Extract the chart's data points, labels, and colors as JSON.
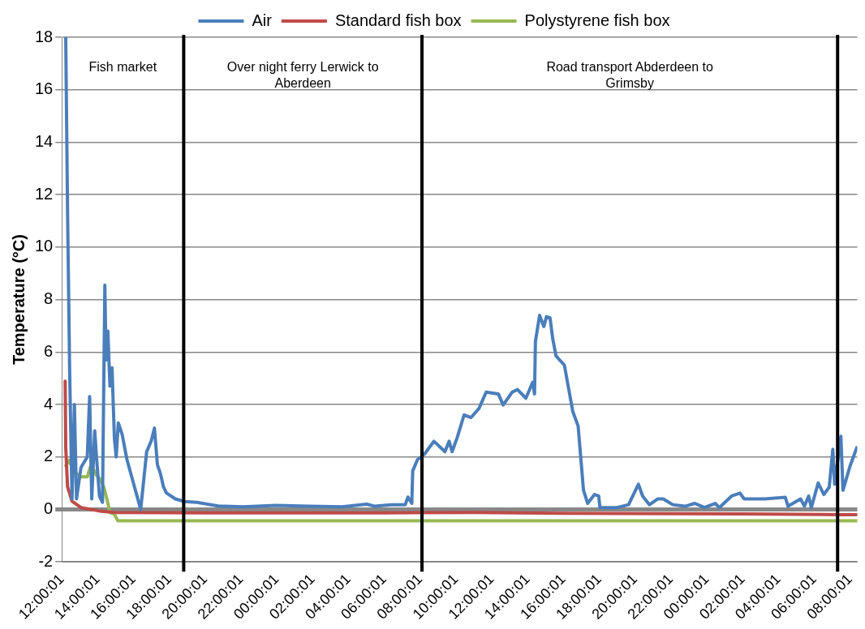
{
  "chart_data": {
    "type": "line",
    "ylabel": "Temperature (°C)",
    "xlim": [
      "--01-01T12:00",
      "--01-03T08:24"
    ],
    "ylim": [
      -2,
      18
    ],
    "yticks": [
      -2,
      0,
      2,
      4,
      6,
      8,
      10,
      12,
      14,
      16,
      18
    ],
    "xticks": [
      {
        "value": "--01-01T12:00:01",
        "label": "12:00:01"
      },
      {
        "value": "--01-01T14:00:01",
        "label": "14:00:01"
      },
      {
        "value": "--01-01T16:00:01",
        "label": "16:00:01"
      },
      {
        "value": "--01-01T18:00:01",
        "label": "18:00:01"
      },
      {
        "value": "--01-01T20:00:01",
        "label": "20:00:01"
      },
      {
        "value": "--01-01T22:00:01",
        "label": "22:00:01"
      },
      {
        "value": "--01-02T00:00:01",
        "label": "00:00:01"
      },
      {
        "value": "--01-02T02:00:01",
        "label": "02:00:01"
      },
      {
        "value": "--01-02T04:00:01",
        "label": "04:00:01"
      },
      {
        "value": "--01-02T06:00:01",
        "label": "06:00:01"
      },
      {
        "value": "--01-02T08:00:01",
        "label": "08:00:01"
      },
      {
        "value": "--01-02T10:00:01",
        "label": "10:00:01"
      },
      {
        "value": "--01-02T12:00:01",
        "label": "12:00:01"
      },
      {
        "value": "--01-02T14:00:01",
        "label": "14:00:01"
      },
      {
        "value": "--01-02T16:00:01",
        "label": "16:00:01"
      },
      {
        "value": "--01-02T18:00:01",
        "label": "18:00:01"
      },
      {
        "value": "--01-02T20:00:01",
        "label": "20:00:01"
      },
      {
        "value": "--01-02T22:00:01",
        "label": "22:00:01"
      },
      {
        "value": "--01-03T00:00:01",
        "label": "00:00:01"
      },
      {
        "value": "--01-03T02:00:01",
        "label": "02:00:01"
      },
      {
        "value": "--01-03T04:00:01",
        "label": "04:00:01"
      },
      {
        "value": "--01-03T06:00:01",
        "label": "06:00:01"
      },
      {
        "value": "--01-03T08:00:01",
        "label": "08:00:01"
      }
    ],
    "grid": "y",
    "legend": "top",
    "marker": "none",
    "line_style": "solid",
    "ref_lines": [
      {
        "axis": "x",
        "value": "--01-01T18:48",
        "color": "#000000"
      },
      {
        "axis": "x",
        "value": "--01-02T08:06",
        "color": "#000000"
      },
      {
        "axis": "x",
        "value": "--01-03T07:18",
        "color": "#000000"
      }
    ],
    "annotations": [
      "Fish market",
      "Over night ferry Lerwick to Aberdeen",
      "Road transport Abderdeen to Grimsby"
    ],
    "series": [
      {
        "name": "Air",
        "color": "#4a7ebb",
        "x": [
          "--01-01T12:13",
          "--01-01T12:19",
          "--01-01T12:26",
          "--01-01T12:34",
          "--01-01T12:42",
          "--01-01T12:49",
          "--01-01T13:04",
          "--01-01T13:25",
          "--01-01T13:33",
          "--01-01T13:40",
          "--01-01T13:50",
          "--01-01T13:56",
          "--01-01T14:06",
          "--01-01T14:16",
          "--01-01T14:24",
          "--01-01T14:28",
          "--01-01T14:34",
          "--01-01T14:41",
          "--01-01T14:48",
          "--01-01T14:56",
          "--01-01T15:02",
          "--01-01T15:09",
          "--01-01T15:22",
          "--01-01T15:38",
          "--01-01T16:24",
          "--01-01T16:44",
          "--01-01T16:59",
          "--01-01T17:10",
          "--01-01T17:20",
          "--01-01T17:30",
          "--01-01T17:40",
          "--01-01T17:50",
          "--01-01T18:20",
          "--01-01T18:51",
          "--01-01T19:32",
          "--01-01T20:44",
          "--01-01T22:07",
          "--01-01T23:57",
          "--01-02T01:47",
          "--01-02T03:38",
          "--01-02T05:01",
          "--01-02T05:28",
          "--01-02T06:23",
          "--01-02T07:10",
          "--01-02T07:19",
          "--01-02T07:32",
          "--01-02T07:35",
          "--01-02T07:51",
          "--01-02T08:14",
          "--01-02T08:46",
          "--01-02T09:23",
          "--01-02T09:37",
          "--01-02T09:47",
          "--01-02T10:04",
          "--01-02T10:27",
          "--01-02T10:50",
          "--01-02T11:17",
          "--01-02T11:41",
          "--01-02T12:22",
          "--01-02T12:38",
          "--01-02T13:08",
          "--01-02T13:26",
          "--01-02T13:54",
          "--01-02T14:17",
          "--01-02T14:23",
          "--01-02T14:26",
          "--01-02T14:40",
          "--01-02T14:54",
          "--01-02T15:03",
          "--01-02T15:15",
          "--01-02T15:24",
          "--01-02T15:35",
          "--01-02T16:03",
          "--01-02T16:31",
          "--01-02T16:49",
          "--01-02T17:07",
          "--01-02T17:21",
          "--01-02T17:44",
          "--01-02T17:58",
          "--01-02T18:02",
          "--01-02T18:58",
          "--01-02T19:38",
          "--01-02T20:11",
          "--01-02T20:25",
          "--01-02T20:48",
          "--01-02T21:15",
          "--01-02T21:34",
          "--01-02T22:06",
          "--01-02T22:47",
          "--01-02T23:20",
          "--01-02T23:52",
          "--01-03T00:28",
          "--01-03T00:42",
          "--01-03T01:23",
          "--01-03T01:51",
          "--01-03T02:05",
          "--01-03T03:14",
          "--01-03T04:23",
          "--01-03T04:32",
          "--01-03T05:14",
          "--01-03T05:27",
          "--01-03T05:41",
          "--01-03T05:50",
          "--01-03T06:13",
          "--01-03T06:32",
          "--01-03T06:50",
          "--01-03T07:02",
          "--01-03T07:08",
          "--01-03T07:29",
          "--01-03T07:36",
          "--01-03T07:59",
          "--01-03T08:22"
        ],
        "values": [
          17.96,
          11.4,
          5.3,
          0.4,
          4.0,
          0.4,
          1.6,
          2.0,
          4.3,
          0.4,
          3.0,
          2.0,
          0.5,
          0.27,
          8.55,
          5.7,
          6.8,
          4.7,
          5.4,
          2.7,
          2.0,
          3.3,
          2.85,
          1.9,
          0.0,
          2.2,
          2.6,
          3.1,
          1.7,
          1.37,
          0.87,
          0.63,
          0.4,
          0.3,
          0.27,
          0.13,
          0.1,
          0.15,
          0.12,
          0.1,
          0.2,
          0.12,
          0.18,
          0.18,
          0.47,
          0.23,
          1.47,
          1.9,
          2.1,
          2.6,
          2.2,
          2.6,
          2.2,
          2.74,
          3.6,
          3.5,
          3.85,
          4.47,
          4.4,
          3.98,
          4.47,
          4.57,
          4.24,
          4.85,
          4.4,
          6.4,
          7.4,
          6.97,
          7.35,
          7.3,
          6.5,
          5.85,
          5.5,
          3.74,
          3.18,
          0.73,
          0.23,
          0.57,
          0.51,
          0.07,
          0.07,
          0.18,
          0.96,
          0.51,
          0.18,
          0.4,
          0.4,
          0.18,
          0.12,
          0.23,
          0.07,
          0.23,
          0.07,
          0.51,
          0.62,
          0.4,
          0.4,
          0.46,
          0.12,
          0.4,
          0.12,
          0.51,
          0.07,
          1.01,
          0.57,
          0.85,
          2.29,
          0.96,
          2.79,
          0.73,
          1.63,
          2.35
        ]
      },
      {
        "name": "Standard fish box",
        "color": "#be4b48",
        "x": [
          "--01-01T12:11",
          "--01-01T12:13",
          "--01-01T12:19",
          "--01-01T12:34",
          "--01-01T13:04",
          "--01-01T14:06",
          "--01-01T14:56",
          "--01-01T20:44",
          "--01-02T06:00",
          "--01-02T11:00",
          "--01-02T16:00",
          "--01-03T02:00",
          "--01-03T07:30",
          "--01-03T08:24"
        ],
        "values": [
          4.89,
          2.35,
          0.87,
          0.31,
          0.07,
          -0.06,
          -0.12,
          -0.13,
          -0.13,
          -0.12,
          -0.15,
          -0.17,
          -0.2,
          -0.2
        ]
      },
      {
        "name": "Polystyrene fish box",
        "color": "#98b954",
        "x": [
          "--01-01T12:13",
          "--01-01T12:23",
          "--01-01T12:34",
          "--01-01T12:49",
          "--01-01T13:04",
          "--01-01T13:25",
          "--01-01T13:35",
          "--01-01T13:45",
          "--01-01T13:56",
          "--01-01T14:10",
          "--01-01T14:20",
          "--01-01T14:31",
          "--01-01T14:41",
          "--01-01T14:56",
          "--01-01T15:07",
          "--01-03T08:24"
        ],
        "values": [
          1.67,
          1.87,
          1.61,
          1.37,
          1.24,
          1.24,
          1.61,
          1.55,
          1.3,
          1.12,
          0.87,
          0.38,
          -0.12,
          -0.18,
          -0.43,
          -0.43
        ]
      }
    ]
  }
}
